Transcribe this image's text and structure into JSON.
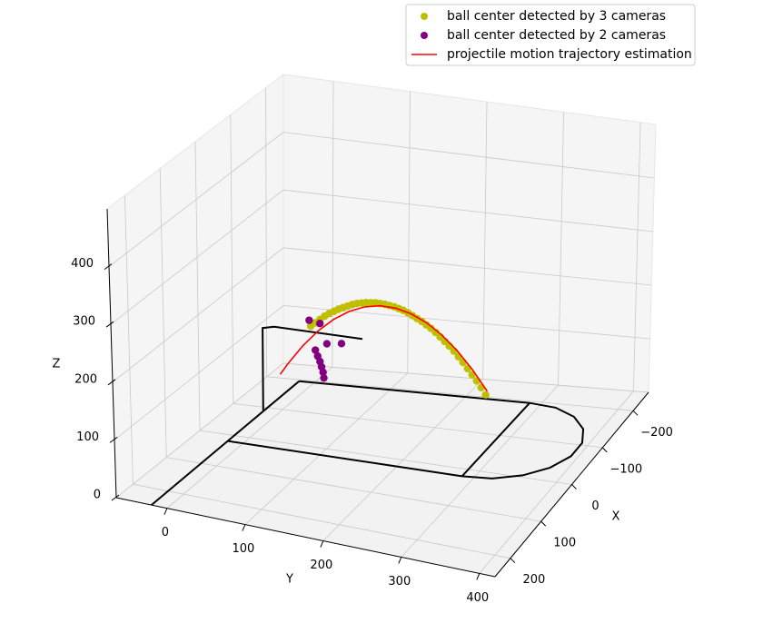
{
  "chart_data": {
    "type": "scatter3d",
    "xlabel": "X",
    "ylabel": "Y",
    "zlabel": "Z",
    "xlim": [
      -250,
      250
    ],
    "ylim": [
      -65,
      420
    ],
    "zlim": [
      0,
      500
    ],
    "xticks": [
      {
        "value": -200,
        "label": "−200"
      },
      {
        "value": -100,
        "label": "−100"
      },
      0,
      100,
      200
    ],
    "yticks": [
      0,
      100,
      200,
      300,
      400
    ],
    "zticks": [
      0,
      100,
      200,
      300,
      400
    ],
    "grid": true,
    "legend": "upper right",
    "series": [
      {
        "name": "ball center detected by 3 cameras",
        "type": "scatter",
        "color": "#bfbf00",
        "x": [
          -70,
          -70,
          -70,
          -70,
          -70,
          -70,
          -70,
          -70,
          -70,
          -70,
          -70,
          -70,
          -70,
          -70,
          -70,
          -70,
          -70,
          -70,
          -70,
          -70,
          -70,
          -70,
          -70,
          -70,
          -70,
          -70,
          -70,
          -70,
          -70,
          -70,
          -70,
          -70,
          -70,
          -70,
          -70,
          -70,
          -70,
          -70,
          -70
        ],
        "y": [
          50,
          56,
          62,
          68,
          74,
          80,
          86,
          92,
          98,
          104,
          110,
          116,
          122,
          128,
          134,
          140,
          146,
          152,
          158,
          164,
          170,
          176,
          182,
          188,
          194,
          200,
          206,
          212,
          218,
          224,
          230,
          236,
          242,
          248,
          254,
          260,
          266,
          272,
          278
        ],
        "z": [
          170,
          177,
          184,
          191,
          197,
          202,
          207,
          211,
          215,
          219,
          222,
          224,
          226,
          227,
          228,
          228,
          228,
          227,
          226,
          224,
          222,
          219,
          215,
          211,
          207,
          202,
          197,
          191,
          184,
          177,
          170,
          162,
          153,
          144,
          134,
          124,
          114,
          103,
          91
        ]
      },
      {
        "name": "ball center detected by 2 cameras",
        "type": "scatter",
        "color": "#800080",
        "x": [
          -70,
          -70,
          -70,
          -70,
          -70,
          -70,
          -70,
          -70,
          -70,
          -70
        ],
        "y": [
          48,
          62,
          71,
          90,
          56,
          59,
          62,
          64,
          66,
          67
        ],
        "z": [
          180,
          177,
          143,
          147,
          129,
          119,
          110,
          101,
          92,
          82
        ]
      },
      {
        "name": "projectile motion trajectory estimation",
        "type": "line",
        "color": "#ff0000",
        "x": [
          -70,
          -70,
          -70,
          -70,
          -70,
          -70,
          -70,
          -70,
          -70,
          -70,
          -70,
          -70,
          -70,
          -70,
          -70
        ],
        "y": [
          10,
          20,
          40,
          60,
          80,
          100,
          120,
          140,
          160,
          180,
          200,
          220,
          240,
          260,
          280
        ],
        "z": [
          78,
          98,
          134,
          164,
          188,
          206,
          218,
          224,
          224,
          218,
          206,
          188,
          164,
          134,
          98
        ]
      }
    ],
    "outline_color": "#000000",
    "outlines": [
      {
        "x": [
          250,
          20,
          -195
        ],
        "y": [
          -20,
          -20,
          -20
        ],
        "z": [
          0,
          0,
          0
        ]
      },
      {
        "x": [
          20,
          20,
          14,
          -5,
          -34,
          -69,
          -106,
          -141,
          -170,
          -189,
          -195,
          -195
        ],
        "y": [
          -20,
          285,
          322,
          354,
          378,
          391,
          391,
          378,
          354,
          322,
          285,
          -20
        ],
        "z": [
          0,
          0,
          0,
          0,
          0,
          0,
          0,
          0,
          0,
          0,
          0,
          0
        ]
      },
      {
        "x": [
          20,
          -195
        ],
        "y": [
          285,
          285
        ],
        "z": [
          0,
          0
        ]
      },
      {
        "x": [
          -87,
          -87,
          -87,
          -87
        ],
        "y": [
          -20,
          -20,
          -5,
          110
        ],
        "z": [
          0,
          145,
          150,
          150
        ]
      }
    ]
  }
}
